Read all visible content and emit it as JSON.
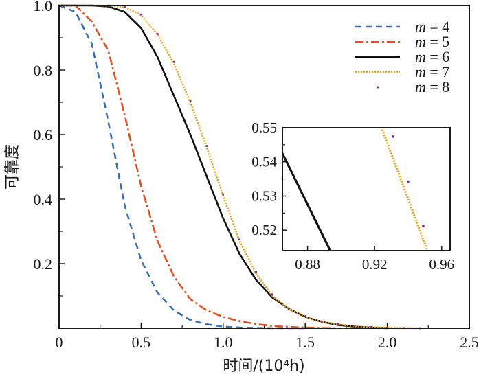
{
  "chart_data": {
    "type": "line",
    "title": "",
    "xlabel": "时间/(10⁴h)",
    "ylabel": "可靠度",
    "xlim": [
      0,
      2.5
    ],
    "ylim": [
      0,
      1.0
    ],
    "x_ticks": [
      {
        "value": 0,
        "label": "0"
      },
      {
        "value": 0.5,
        "label": "0.5"
      },
      {
        "value": 1.0,
        "label": "1.0"
      },
      {
        "value": 1.5,
        "label": "1.5"
      },
      {
        "value": 2.0,
        "label": "2.0"
      },
      {
        "value": 2.5,
        "label": "2.5"
      }
    ],
    "y_ticks": [
      {
        "value": 0.2,
        "label": "0.2"
      },
      {
        "value": 0.4,
        "label": "0.4"
      },
      {
        "value": 0.6,
        "label": "0.6"
      },
      {
        "value": 0.8,
        "label": "0.8"
      },
      {
        "value": 1.0,
        "label": "1.0"
      }
    ],
    "legend_position": "top-right",
    "series": [
      {
        "name": "m = 4",
        "var": "m",
        "eq": "= 4",
        "color": "#3a6fb0",
        "style": "dashed",
        "x": [
          0,
          0.1,
          0.2,
          0.3,
          0.4,
          0.5,
          0.6,
          0.7,
          0.8,
          0.9,
          1.0,
          1.1,
          1.2,
          1.3,
          1.4,
          1.5
        ],
        "y": [
          1.0,
          0.98,
          0.88,
          0.64,
          0.38,
          0.21,
          0.11,
          0.055,
          0.025,
          0.012,
          0.005,
          0.002,
          0.001,
          0,
          0,
          0
        ]
      },
      {
        "name": "m = 5",
        "var": "m",
        "eq": "= 5",
        "color": "#d9532a",
        "style": "dashdot",
        "x": [
          0,
          0.1,
          0.2,
          0.3,
          0.4,
          0.5,
          0.6,
          0.7,
          0.8,
          0.9,
          1.0,
          1.1,
          1.2,
          1.3,
          1.4,
          1.5,
          1.6,
          1.7
        ],
        "y": [
          1.0,
          1.0,
          0.95,
          0.86,
          0.66,
          0.44,
          0.27,
          0.16,
          0.09,
          0.055,
          0.035,
          0.022,
          0.013,
          0.007,
          0.004,
          0.002,
          0.001,
          0
        ]
      },
      {
        "name": "m = 6",
        "var": "m",
        "eq": "= 6",
        "color": "#111111",
        "style": "solid",
        "x": [
          0,
          0.1,
          0.2,
          0.3,
          0.4,
          0.5,
          0.6,
          0.7,
          0.8,
          0.9,
          1.0,
          1.1,
          1.2,
          1.3,
          1.4,
          1.5,
          1.6,
          1.7,
          1.8,
          1.9,
          2.0
        ],
        "y": [
          1.0,
          1.0,
          1.0,
          0.997,
          0.98,
          0.93,
          0.84,
          0.72,
          0.6,
          0.47,
          0.34,
          0.23,
          0.15,
          0.095,
          0.06,
          0.035,
          0.02,
          0.01,
          0.005,
          0.002,
          0
        ]
      },
      {
        "name": "m = 7",
        "var": "m",
        "eq": "= 7",
        "color": "#e0a020",
        "style": "dotted",
        "x": [
          0,
          0.1,
          0.2,
          0.3,
          0.4,
          0.5,
          0.6,
          0.7,
          0.8,
          0.9,
          1.0,
          1.1,
          1.2,
          1.3,
          1.4,
          1.5,
          1.6,
          1.7,
          1.8,
          1.9,
          2.0,
          2.1,
          2.2
        ],
        "y": [
          1.0,
          1.0,
          1.0,
          1.0,
          0.995,
          0.97,
          0.91,
          0.82,
          0.7,
          0.56,
          0.41,
          0.27,
          0.17,
          0.1,
          0.06,
          0.035,
          0.02,
          0.012,
          0.006,
          0.003,
          0.0015,
          0.0005,
          0
        ]
      },
      {
        "name": "m = 8",
        "var": "m",
        "eq": "= 8",
        "color": "#7a2a8a",
        "style": "points",
        "x": [
          0,
          0.1,
          0.2,
          0.3,
          0.4,
          0.5,
          0.6,
          0.7,
          0.8,
          0.9,
          1.0,
          1.1,
          1.2,
          1.3,
          1.4,
          1.5,
          1.6,
          1.7,
          1.8,
          1.9,
          2.0,
          2.1,
          2.2
        ],
        "y": [
          1.0,
          1.0,
          1.0,
          1.0,
          0.995,
          0.972,
          0.912,
          0.825,
          0.705,
          0.565,
          0.415,
          0.275,
          0.175,
          0.105,
          0.062,
          0.037,
          0.021,
          0.013,
          0.007,
          0.0035,
          0.0017,
          0.0006,
          0
        ]
      }
    ],
    "inset": {
      "xlim": [
        0.865,
        0.965
      ],
      "ylim": [
        0.514,
        0.55
      ],
      "x_ticks": [
        {
          "value": 0.88,
          "label": "0.88"
        },
        {
          "value": 0.92,
          "label": "0.92"
        },
        {
          "value": 0.96,
          "label": "0.96"
        }
      ],
      "y_ticks": [
        {
          "value": 0.52,
          "label": "0.52"
        },
        {
          "value": 0.53,
          "label": "0.53"
        },
        {
          "value": 0.54,
          "label": "0.54"
        },
        {
          "value": 0.55,
          "label": "0.55"
        }
      ],
      "series": [
        {
          "name": "m = 6",
          "color": "#111111",
          "style": "solid",
          "x": [
            0.865,
            0.8935
          ],
          "y": [
            0.5425,
            0.514
          ]
        },
        {
          "name": "m = 7",
          "color": "#e0a020",
          "style": "dotted",
          "x": [
            0.924,
            0.951
          ],
          "y": [
            0.5502,
            0.5146
          ]
        },
        {
          "name": "m = 8",
          "color": "#7a2a8a",
          "style": "points",
          "x": [
            0.931,
            0.94,
            0.949
          ],
          "y": [
            0.5474,
            0.5342,
            0.5212
          ]
        }
      ]
    }
  }
}
